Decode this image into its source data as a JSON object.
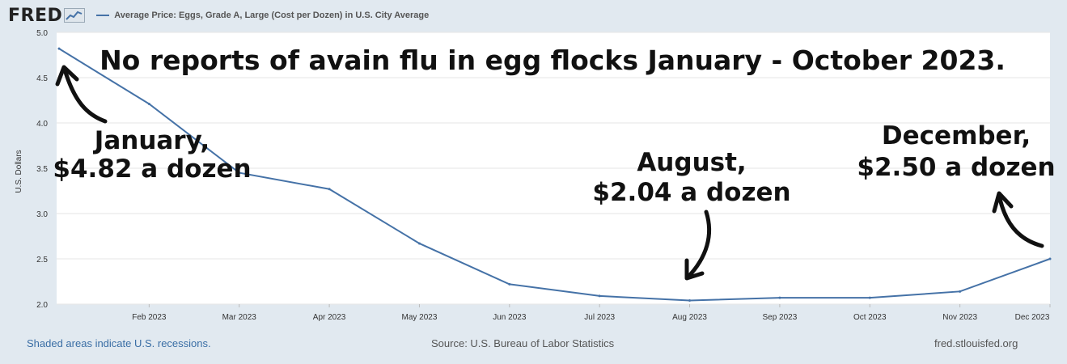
{
  "header": {
    "logo_text": "FRED",
    "legend_label": "Average Price: Eggs, Grade A, Large (Cost per Dozen) in U.S. City Average"
  },
  "footer": {
    "recession_note": "Shaded areas indicate U.S. recessions.",
    "source": "Source: U.S. Bureau of Labor Statistics",
    "site": "fred.stlouisfed.org"
  },
  "colors": {
    "background": "#e1e9f0",
    "plot_background": "#ffffff",
    "series_line": "#4572a7",
    "annotation_text": "#111111",
    "link": "#3a6ea5"
  },
  "chart_data": {
    "type": "line",
    "title": "No reports of avain flu in egg flocks January - October 2023.",
    "ylabel": "U.S. Dollars",
    "xlabel": "",
    "ylim": [
      2.0,
      5.0
    ],
    "yticks": [
      "2.0",
      "2.5",
      "3.0",
      "3.5",
      "4.0",
      "4.5",
      "5.0"
    ],
    "xtick_labels": [
      "Feb 2023",
      "Mar 2023",
      "Apr 2023",
      "May 2023",
      "Jun 2023",
      "Jul 2023",
      "Aug 2023",
      "Sep 2023",
      "Oct 2023",
      "Nov 2023",
      "Dec 2023"
    ],
    "grid": true,
    "series": [
      {
        "name": "Average Price: Eggs, Grade A, Large (Cost per Dozen) in U.S. City Average",
        "x": [
          "Jan 2023",
          "Feb 2023",
          "Mar 2023",
          "Apr 2023",
          "May 2023",
          "Jun 2023",
          "Jul 2023",
          "Aug 2023",
          "Sep 2023",
          "Oct 2023",
          "Nov 2023",
          "Dec 2023"
        ],
        "values": [
          4.82,
          4.21,
          3.45,
          3.27,
          2.67,
          2.22,
          2.09,
          2.04,
          2.07,
          2.07,
          2.14,
          2.5
        ]
      }
    ],
    "annotations": [
      {
        "lines": [
          "January,",
          "$4.82 a dozen"
        ]
      },
      {
        "lines": [
          "August,",
          "$2.04 a dozen"
        ]
      },
      {
        "lines": [
          "December,",
          "$2.50 a dozen"
        ]
      }
    ]
  }
}
